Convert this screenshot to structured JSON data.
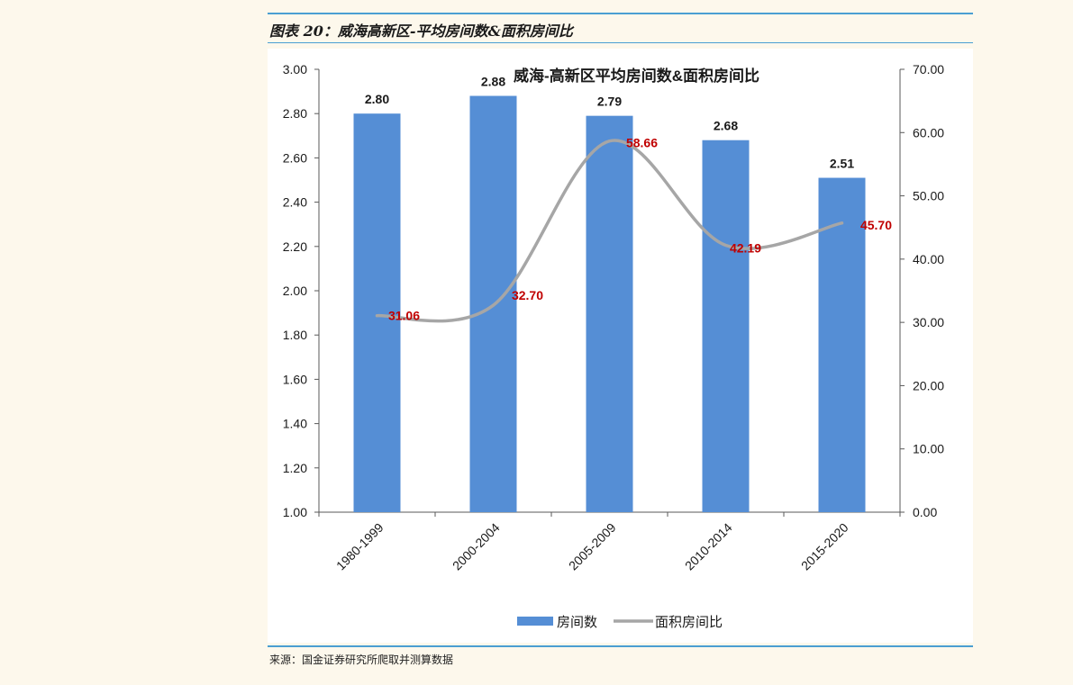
{
  "header": {
    "figure_title": "图表 20：威海高新区-平均房间数&面积房间比"
  },
  "footer": {
    "source": "来源：国金证券研究所爬取并测算数据"
  },
  "colors": {
    "bar": "#558ed5",
    "line": "#a6a6a6",
    "line_label": "#c00000",
    "bar_label": "#1a1a1a",
    "rule": "#4a9fd2"
  },
  "chart_data": {
    "type": "bar",
    "title": "威海-高新区平均房间数&面积房间比",
    "categories": [
      "1980-1999",
      "2000-2004",
      "2005-2009",
      "2010-2014",
      "2015-2020"
    ],
    "series": [
      {
        "name": "房间数",
        "type": "bar",
        "axis": "left",
        "values": [
          2.8,
          2.88,
          2.79,
          2.68,
          2.51
        ],
        "labels": [
          "2.80",
          "2.88",
          "2.79",
          "2.68",
          "2.51"
        ]
      },
      {
        "name": "面积房间比",
        "type": "line",
        "axis": "right",
        "smooth": true,
        "values": [
          31.06,
          32.7,
          58.66,
          42.19,
          45.7
        ],
        "labels": [
          "31.06",
          "32.70",
          "58.66",
          "42.19",
          "45.70"
        ]
      }
    ],
    "y_left": {
      "range": [
        1.0,
        3.0
      ],
      "ticks": [
        "1.00",
        "1.20",
        "1.40",
        "1.60",
        "1.80",
        "2.00",
        "2.20",
        "2.40",
        "2.60",
        "2.80",
        "3.00"
      ]
    },
    "y_right": {
      "range": [
        0,
        70
      ],
      "ticks": [
        "0.00",
        "10.00",
        "20.00",
        "30.00",
        "40.00",
        "50.00",
        "60.00",
        "70.00"
      ]
    },
    "grid": false,
    "legend_position": "bottom"
  }
}
